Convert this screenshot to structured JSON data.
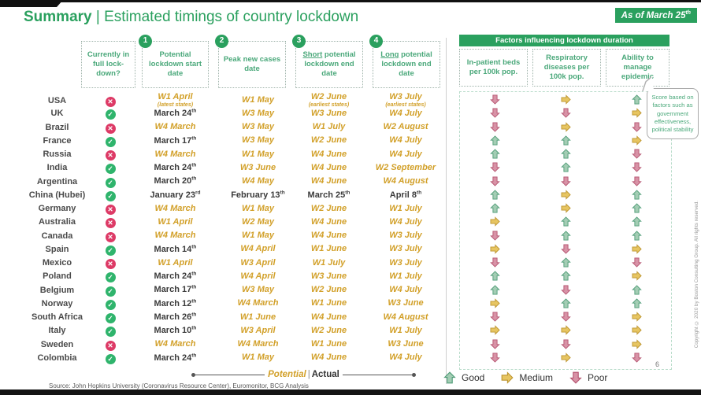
{
  "header": {
    "title_bold": "Summary",
    "title_sep": "|",
    "title_rest": "Estimated timings of country lockdown",
    "as_of": "As of March 25",
    "as_of_sup": "th"
  },
  "columns": {
    "lockdown_q": "Currently in full lock-down?",
    "c1_num": "1",
    "c1_label": "Potential lockdown start date",
    "c2_num": "2",
    "c2_label": "Peak new cases date",
    "c3_num": "3",
    "c3_underline": "Short",
    "c3_label": " potential lockdown end date",
    "c4_num": "4",
    "c4_underline": "Long",
    "c4_label": " potential lockdown end date"
  },
  "factors": {
    "title": "Factors influencing lockdown duration",
    "col1": "In-patient beds per 100k pop.",
    "col2": "Respiratory diseases per 100k pop.",
    "col3": "Ability to manage epidemic",
    "callout": "Score based on factors such as government effectiveness, political stability"
  },
  "rows": [
    {
      "country": "USA",
      "in_lockdown": false,
      "start": {
        "t": "W1 April",
        "sup": "",
        "type": "potential",
        "note": "(latest states)"
      },
      "peak": {
        "t": "W1 May",
        "sup": "",
        "type": "potential"
      },
      "short": {
        "t": "W2 June",
        "sup": "",
        "type": "potential",
        "note": "(earliest states)"
      },
      "long": {
        "t": "W3 July",
        "sup": "",
        "type": "potential",
        "note": "(earliest states)"
      },
      "factors": [
        "poor",
        "medium",
        "good"
      ]
    },
    {
      "country": "UK",
      "in_lockdown": true,
      "start": {
        "t": "March 24",
        "sup": "th",
        "type": "actual"
      },
      "peak": {
        "t": "W3 May",
        "sup": "",
        "type": "potential"
      },
      "short": {
        "t": "W3 June",
        "sup": "",
        "type": "potential"
      },
      "long": {
        "t": "W4 July",
        "sup": "",
        "type": "potential"
      },
      "factors": [
        "poor",
        "poor",
        "medium"
      ]
    },
    {
      "country": "Brazil",
      "in_lockdown": false,
      "start": {
        "t": "W4 March",
        "sup": "",
        "type": "potential"
      },
      "peak": {
        "t": "W3 May",
        "sup": "",
        "type": "potential"
      },
      "short": {
        "t": "W1 July",
        "sup": "",
        "type": "potential"
      },
      "long": {
        "t": "W2 August",
        "sup": "",
        "type": "potential"
      },
      "factors": [
        "poor",
        "medium",
        "poor"
      ]
    },
    {
      "country": "France",
      "in_lockdown": true,
      "start": {
        "t": "March 17",
        "sup": "th",
        "type": "actual"
      },
      "peak": {
        "t": "W3 May",
        "sup": "",
        "type": "potential"
      },
      "short": {
        "t": "W2 June",
        "sup": "",
        "type": "potential"
      },
      "long": {
        "t": "W4 July",
        "sup": "",
        "type": "potential"
      },
      "factors": [
        "good",
        "good",
        "medium"
      ]
    },
    {
      "country": "Russia",
      "in_lockdown": false,
      "start": {
        "t": "W4 March",
        "sup": "",
        "type": "potential"
      },
      "peak": {
        "t": "W1 May",
        "sup": "",
        "type": "potential"
      },
      "short": {
        "t": "W4 June",
        "sup": "",
        "type": "potential"
      },
      "long": {
        "t": "W4 July",
        "sup": "",
        "type": "potential"
      },
      "factors": [
        "good",
        "good",
        "poor"
      ]
    },
    {
      "country": "India",
      "in_lockdown": true,
      "start": {
        "t": "March 24",
        "sup": "th",
        "type": "actual"
      },
      "peak": {
        "t": "W3 June",
        "sup": "",
        "type": "potential"
      },
      "short": {
        "t": "W4 June",
        "sup": "",
        "type": "potential"
      },
      "long": {
        "t": "W2 September",
        "sup": "",
        "type": "potential"
      },
      "factors": [
        "poor",
        "good",
        "poor"
      ]
    },
    {
      "country": "Argentina",
      "in_lockdown": true,
      "start": {
        "t": "March 20",
        "sup": "th",
        "type": "actual"
      },
      "peak": {
        "t": "W4 May",
        "sup": "",
        "type": "potential"
      },
      "short": {
        "t": "W4 June",
        "sup": "",
        "type": "potential"
      },
      "long": {
        "t": "W4 August",
        "sup": "",
        "type": "potential"
      },
      "factors": [
        "poor",
        "poor",
        "poor"
      ]
    },
    {
      "country": "China (Hubei)",
      "in_lockdown": true,
      "start": {
        "t": "January 23",
        "sup": "rd",
        "type": "actual"
      },
      "peak": {
        "t": "February 13",
        "sup": "th",
        "type": "actual"
      },
      "short": {
        "t": "March 25",
        "sup": "th",
        "type": "actual"
      },
      "long": {
        "t": "April 8",
        "sup": "th",
        "type": "actual"
      },
      "factors": [
        "good",
        "medium",
        "good"
      ]
    },
    {
      "country": "Germany",
      "in_lockdown": false,
      "start": {
        "t": "W4 March",
        "sup": "",
        "type": "potential"
      },
      "peak": {
        "t": "W1 May",
        "sup": "",
        "type": "potential"
      },
      "short": {
        "t": "W2 June",
        "sup": "",
        "type": "potential"
      },
      "long": {
        "t": "W1 July",
        "sup": "",
        "type": "potential"
      },
      "factors": [
        "good",
        "medium",
        "good"
      ]
    },
    {
      "country": "Australia",
      "in_lockdown": false,
      "start": {
        "t": "W1 April",
        "sup": "",
        "type": "potential"
      },
      "peak": {
        "t": "W2 May",
        "sup": "",
        "type": "potential"
      },
      "short": {
        "t": "W4 June",
        "sup": "",
        "type": "potential"
      },
      "long": {
        "t": "W4 July",
        "sup": "",
        "type": "potential"
      },
      "factors": [
        "medium",
        "good",
        "good"
      ]
    },
    {
      "country": "Canada",
      "in_lockdown": false,
      "start": {
        "t": "W4 March",
        "sup": "",
        "type": "potential"
      },
      "peak": {
        "t": "W1 May",
        "sup": "",
        "type": "potential"
      },
      "short": {
        "t": "W4 June",
        "sup": "",
        "type": "potential"
      },
      "long": {
        "t": "W3 July",
        "sup": "",
        "type": "potential"
      },
      "factors": [
        "poor",
        "good",
        "good"
      ]
    },
    {
      "country": "Spain",
      "in_lockdown": true,
      "start": {
        "t": "March 14",
        "sup": "th",
        "type": "actual"
      },
      "peak": {
        "t": "W4 April",
        "sup": "",
        "type": "potential"
      },
      "short": {
        "t": "W1 June",
        "sup": "",
        "type": "potential"
      },
      "long": {
        "t": "W3 July",
        "sup": "",
        "type": "potential"
      },
      "factors": [
        "medium",
        "poor",
        "medium"
      ]
    },
    {
      "country": "Mexico",
      "in_lockdown": false,
      "start": {
        "t": "W1 April",
        "sup": "",
        "type": "potential"
      },
      "peak": {
        "t": "W3 April",
        "sup": "",
        "type": "potential"
      },
      "short": {
        "t": "W1 July",
        "sup": "",
        "type": "potential"
      },
      "long": {
        "t": "W3 July",
        "sup": "",
        "type": "potential"
      },
      "factors": [
        "poor",
        "good",
        "poor"
      ]
    },
    {
      "country": "Poland",
      "in_lockdown": true,
      "start": {
        "t": "March 24",
        "sup": "th",
        "type": "actual"
      },
      "peak": {
        "t": "W4 April",
        "sup": "",
        "type": "potential"
      },
      "short": {
        "t": "W3 June",
        "sup": "",
        "type": "potential"
      },
      "long": {
        "t": "W1 July",
        "sup": "",
        "type": "potential"
      },
      "factors": [
        "good",
        "good",
        "medium"
      ]
    },
    {
      "country": "Belgium",
      "in_lockdown": true,
      "start": {
        "t": "March 17",
        "sup": "th",
        "type": "actual"
      },
      "peak": {
        "t": "W3 May",
        "sup": "",
        "type": "potential"
      },
      "short": {
        "t": "W2 June",
        "sup": "",
        "type": "potential"
      },
      "long": {
        "t": "W4 July",
        "sup": "",
        "type": "potential"
      },
      "factors": [
        "good",
        "poor",
        "good"
      ]
    },
    {
      "country": "Norway",
      "in_lockdown": true,
      "start": {
        "t": "March 12",
        "sup": "th",
        "type": "actual"
      },
      "peak": {
        "t": "W4 March",
        "sup": "",
        "type": "potential"
      },
      "short": {
        "t": "W1 June",
        "sup": "",
        "type": "potential"
      },
      "long": {
        "t": "W3 June",
        "sup": "",
        "type": "potential"
      },
      "factors": [
        "medium",
        "good",
        "good"
      ]
    },
    {
      "country": "South Africa",
      "in_lockdown": true,
      "start": {
        "t": "March 26",
        "sup": "th",
        "type": "actual"
      },
      "peak": {
        "t": "W1 June",
        "sup": "",
        "type": "potential"
      },
      "short": {
        "t": "W4 June",
        "sup": "",
        "type": "potential"
      },
      "long": {
        "t": "W4 August",
        "sup": "",
        "type": "potential"
      },
      "factors": [
        "poor",
        "poor",
        "medium"
      ]
    },
    {
      "country": "Italy",
      "in_lockdown": true,
      "start": {
        "t": "March 10",
        "sup": "th",
        "type": "actual"
      },
      "peak": {
        "t": "W3 April",
        "sup": "",
        "type": "potential"
      },
      "short": {
        "t": "W2 June",
        "sup": "",
        "type": "potential"
      },
      "long": {
        "t": "W1 July",
        "sup": "",
        "type": "potential"
      },
      "factors": [
        "medium",
        "medium",
        "medium"
      ]
    },
    {
      "country": "Sweden",
      "in_lockdown": false,
      "start": {
        "t": "W4 March",
        "sup": "",
        "type": "potential"
      },
      "peak": {
        "t": "W4 March",
        "sup": "",
        "type": "potential"
      },
      "short": {
        "t": "W1 June",
        "sup": "",
        "type": "potential"
      },
      "long": {
        "t": "W3 June",
        "sup": "",
        "type": "potential"
      },
      "factors": [
        "poor",
        "poor",
        "medium"
      ]
    },
    {
      "country": "Colombia",
      "in_lockdown": true,
      "start": {
        "t": "March 24",
        "sup": "th",
        "type": "actual"
      },
      "peak": {
        "t": "W1 May",
        "sup": "",
        "type": "potential"
      },
      "short": {
        "t": "W4 June",
        "sup": "",
        "type": "potential"
      },
      "long": {
        "t": "W4 July",
        "sup": "",
        "type": "potential"
      },
      "factors": [
        "poor",
        "medium",
        "poor"
      ]
    }
  ],
  "legend": {
    "potential": "Potential",
    "divider": "|",
    "actual": "Actual",
    "good": "Good",
    "medium": "Medium",
    "poor": "Poor"
  },
  "footer": {
    "source": "Source: John Hopkins University (Coronavirus Resource Center), Euromonitor, BCG Analysis",
    "page": "6",
    "copyright": "Copyright © 2020 by Boston Consulting Group. All rights reserved."
  },
  "colors": {
    "brand_green": "#2aa05e",
    "gold": "#d2a029",
    "cross_red": "#dd3a66",
    "check_green": "#2fb46c",
    "arrow_good": "#a3cdb4",
    "arrow_medium": "#e7c561",
    "arrow_poor": "#d892a6"
  }
}
